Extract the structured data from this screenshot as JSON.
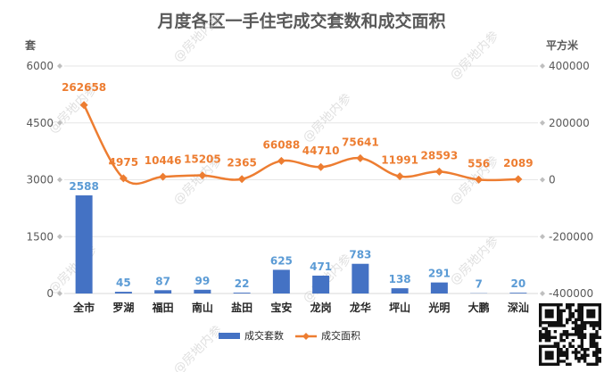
{
  "chart_data": {
    "type": "bar+line",
    "title": "月度各区一手住宅成交套数和成交面积",
    "categories": [
      "全市",
      "罗湖",
      "福田",
      "南山",
      "盐田",
      "宝安",
      "龙岗",
      "龙华",
      "坪山",
      "光明",
      "大鹏",
      "深汕"
    ],
    "series": [
      {
        "name": "成交套数",
        "type": "bar",
        "axis": "left",
        "color": "#4472c4",
        "label_color": "#5b9bd5",
        "values": [
          2588,
          45,
          87,
          99,
          22,
          625,
          471,
          783,
          138,
          291,
          7,
          20
        ]
      },
      {
        "name": "成交面积",
        "type": "line",
        "axis": "right",
        "color": "#ed7d31",
        "values": [
          262658,
          4975,
          10446,
          15205,
          2365,
          66088,
          44710,
          75641,
          11991,
          28593,
          556,
          2089
        ]
      }
    ],
    "y_left": {
      "label": "套",
      "range": [
        0,
        6000
      ],
      "ticks": [
        "0",
        "1500",
        "3000",
        "4500",
        "6000"
      ]
    },
    "y_right": {
      "label": "平方米",
      "range": [
        -400000,
        400000
      ],
      "ticks": [
        "-400000",
        "-200000",
        "0",
        "200000",
        "400000"
      ]
    },
    "legend": {
      "position": "bottom"
    },
    "grid": true
  },
  "watermark_text": "@房地内参",
  "colors": {
    "axis_line": "#d9d9d9",
    "grid_line": "#e6e6e6"
  }
}
